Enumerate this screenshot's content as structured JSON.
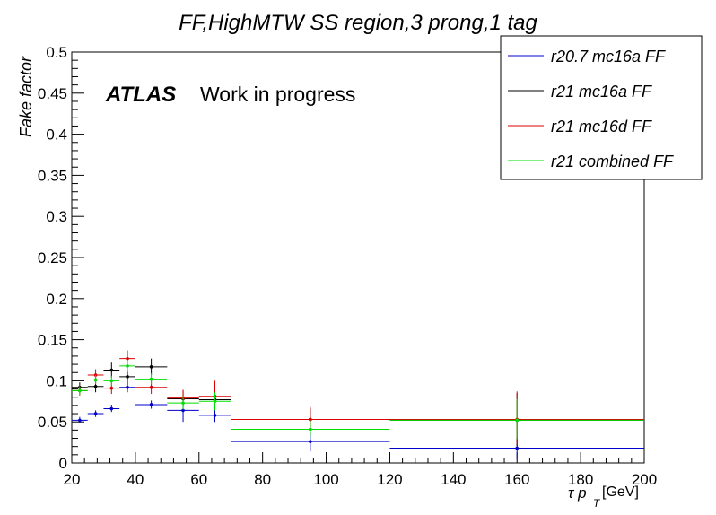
{
  "chart_data": {
    "type": "scatter",
    "title": "FF,HighMTW SS region,3 prong,1 tag",
    "xlabel_prefix": "τ p",
    "xlabel_sub": "T",
    "xlabel_suffix": "[GeV]",
    "ylabel": "Fake factor",
    "xlim": [
      20,
      200
    ],
    "ylim": [
      0,
      0.5
    ],
    "x_ticks": [
      "20",
      "40",
      "60",
      "80",
      "100",
      "120",
      "140",
      "160",
      "180",
      "200"
    ],
    "y_ticks": [
      "0",
      "0.05",
      "0.1",
      "0.15",
      "0.2",
      "0.25",
      "0.3",
      "0.35",
      "0.4",
      "0.45",
      "0.5"
    ],
    "annotation_bold": "ATLAS",
    "annotation": "Work in progress",
    "legend_position": "top-right",
    "series": [
      {
        "name": "r20.7 mc16a FF",
        "color": "#0000cc",
        "points": [
          {
            "x": 22.5,
            "xlo": 20,
            "xhi": 25,
            "y": 0.052,
            "ylo": 0.048,
            "yhi": 0.056
          },
          {
            "x": 27.5,
            "xlo": 25,
            "xhi": 30,
            "y": 0.06,
            "ylo": 0.056,
            "yhi": 0.064
          },
          {
            "x": 32.5,
            "xlo": 30,
            "xhi": 35,
            "y": 0.066,
            "ylo": 0.062,
            "yhi": 0.071
          },
          {
            "x": 37.5,
            "xlo": 35,
            "xhi": 40,
            "y": 0.092,
            "ylo": 0.086,
            "yhi": 0.099
          },
          {
            "x": 45,
            "xlo": 40,
            "xhi": 50,
            "y": 0.071,
            "ylo": 0.066,
            "yhi": 0.076
          },
          {
            "x": 55,
            "xlo": 50,
            "xhi": 60,
            "y": 0.064,
            "ylo": 0.05,
            "yhi": 0.072
          },
          {
            "x": 65,
            "xlo": 60,
            "xhi": 70,
            "y": 0.058,
            "ylo": 0.05,
            "yhi": 0.067
          },
          {
            "x": 95,
            "xlo": 70,
            "xhi": 120,
            "y": 0.026,
            "ylo": 0.014,
            "yhi": 0.038
          },
          {
            "x": 160,
            "xlo": 120,
            "xhi": 200,
            "y": 0.018,
            "ylo": 0.004,
            "yhi": 0.032
          }
        ]
      },
      {
        "name": "r21 mc16a FF",
        "color": "#000000",
        "points": [
          {
            "x": 22.5,
            "xlo": 20,
            "xhi": 25,
            "y": 0.092,
            "ylo": 0.085,
            "yhi": 0.098
          },
          {
            "x": 27.5,
            "xlo": 25,
            "xhi": 30,
            "y": 0.093,
            "ylo": 0.086,
            "yhi": 0.1
          },
          {
            "x": 32.5,
            "xlo": 30,
            "xhi": 35,
            "y": 0.113,
            "ylo": 0.104,
            "yhi": 0.122
          },
          {
            "x": 37.5,
            "xlo": 35,
            "xhi": 40,
            "y": 0.105,
            "ylo": 0.095,
            "yhi": 0.114
          },
          {
            "x": 45,
            "xlo": 40,
            "xhi": 50,
            "y": 0.117,
            "ylo": 0.107,
            "yhi": 0.127
          },
          {
            "x": 55,
            "xlo": 50,
            "xhi": 60,
            "y": 0.078,
            "ylo": 0.068,
            "yhi": 0.088
          },
          {
            "x": 65,
            "xlo": 60,
            "xhi": 70,
            "y": 0.077,
            "ylo": 0.064,
            "yhi": 0.088
          },
          {
            "x": 95,
            "xlo": 70,
            "xhi": 120,
            "y": 0.053,
            "ylo": 0.04,
            "yhi": 0.066
          },
          {
            "x": 160,
            "xlo": 120,
            "xhi": 200,
            "y": 0.052,
            "ylo": 0.02,
            "yhi": 0.085
          }
        ]
      },
      {
        "name": "r21 mc16d FF",
        "color": "#dd0000",
        "points": [
          {
            "x": 22.5,
            "xlo": 20,
            "xhi": 25,
            "y": 0.088,
            "ylo": 0.082,
            "yhi": 0.094
          },
          {
            "x": 27.5,
            "xlo": 25,
            "xhi": 30,
            "y": 0.107,
            "ylo": 0.1,
            "yhi": 0.114
          },
          {
            "x": 32.5,
            "xlo": 30,
            "xhi": 35,
            "y": 0.091,
            "ylo": 0.084,
            "yhi": 0.098
          },
          {
            "x": 37.5,
            "xlo": 35,
            "xhi": 40,
            "y": 0.127,
            "ylo": 0.117,
            "yhi": 0.137
          },
          {
            "x": 45,
            "xlo": 40,
            "xhi": 50,
            "y": 0.092,
            "ylo": 0.084,
            "yhi": 0.1
          },
          {
            "x": 55,
            "xlo": 50,
            "xhi": 60,
            "y": 0.079,
            "ylo": 0.069,
            "yhi": 0.089
          },
          {
            "x": 65,
            "xlo": 60,
            "xhi": 70,
            "y": 0.081,
            "ylo": 0.066,
            "yhi": 0.1
          },
          {
            "x": 95,
            "xlo": 70,
            "xhi": 120,
            "y": 0.053,
            "ylo": 0.04,
            "yhi": 0.068
          },
          {
            "x": 160,
            "xlo": 120,
            "xhi": 200,
            "y": 0.053,
            "ylo": 0.022,
            "yhi": 0.087
          }
        ]
      },
      {
        "name": "r21 combined FF",
        "color": "#00dd00",
        "points": [
          {
            "x": 22.5,
            "xlo": 20,
            "xhi": 25,
            "y": 0.088,
            "ylo": 0.083,
            "yhi": 0.093
          },
          {
            "x": 27.5,
            "xlo": 25,
            "xhi": 30,
            "y": 0.101,
            "ylo": 0.096,
            "yhi": 0.107
          },
          {
            "x": 32.5,
            "xlo": 30,
            "xhi": 35,
            "y": 0.1,
            "ylo": 0.094,
            "yhi": 0.106
          },
          {
            "x": 37.5,
            "xlo": 35,
            "xhi": 40,
            "y": 0.118,
            "ylo": 0.111,
            "yhi": 0.125
          },
          {
            "x": 45,
            "xlo": 40,
            "xhi": 50,
            "y": 0.102,
            "ylo": 0.096,
            "yhi": 0.109
          },
          {
            "x": 55,
            "xlo": 50,
            "xhi": 60,
            "y": 0.073,
            "ylo": 0.065,
            "yhi": 0.08
          },
          {
            "x": 65,
            "xlo": 60,
            "xhi": 70,
            "y": 0.075,
            "ylo": 0.064,
            "yhi": 0.086
          },
          {
            "x": 95,
            "xlo": 70,
            "xhi": 120,
            "y": 0.041,
            "ylo": 0.032,
            "yhi": 0.052
          },
          {
            "x": 160,
            "xlo": 120,
            "xhi": 200,
            "y": 0.052,
            "ylo": 0.029,
            "yhi": 0.078
          }
        ]
      }
    ]
  }
}
